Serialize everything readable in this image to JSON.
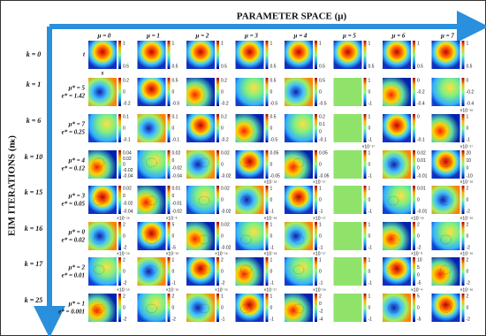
{
  "header": {
    "title": "PARAMETER SPACE (μ)",
    "y_title": "EIM ITERATIONS (nₖ)"
  },
  "columns": [
    "μ = 0",
    "μ = 1",
    "μ = 2",
    "μ = 3",
    "μ = 4",
    "μ = 5",
    "μ = 6",
    "μ = 7"
  ],
  "axis_labels": {
    "t": "t",
    "s": "s"
  },
  "rows": [
    {
      "label": "k = 0",
      "cells": [
        {
          "ticks": [
            "1",
            "0.5"
          ]
        },
        {
          "ticks": [
            "1",
            "0.5"
          ]
        },
        {
          "ticks": [
            "1",
            "0.5"
          ]
        },
        {
          "ticks": [
            "1",
            "0.5"
          ]
        },
        {
          "ticks": [
            "1",
            "0.5"
          ]
        },
        {
          "ticks": [
            "1",
            "0.5"
          ]
        },
        {
          "ticks": [
            "1",
            "0.5"
          ]
        },
        {
          "ticks": [
            "1",
            "0.5"
          ]
        }
      ]
    },
    {
      "label": "k = 1",
      "mu_star": "μ* = 5",
      "e_star": "e* = 1.42",
      "cells": [
        {
          "ticks": [
            "0.2",
            "0",
            "-0.2"
          ]
        },
        {
          "ticks": [
            "0.5",
            "0",
            "-0.5"
          ]
        },
        {
          "ticks": [
            "0.2",
            "0",
            "-0.2"
          ]
        },
        {
          "ticks": [
            "0.5",
            "0",
            "-0.5"
          ]
        },
        {
          "ticks": [
            "0.5",
            "0",
            "-0.5"
          ]
        },
        {
          "ticks": [
            "1",
            "0",
            "-1"
          ]
        },
        {
          "ticks": [
            "0",
            "-0.2",
            "-0.4"
          ]
        },
        {
          "ticks": [
            "0",
            "-0.2",
            "-0.4"
          ]
        }
      ]
    },
    {
      "label": "k = 6",
      "mu_star": "μ* = 7",
      "e_star": "e* = 0.25",
      "cells": [
        {
          "ticks": [
            "0.1",
            "0",
            "-0.1"
          ]
        },
        {
          "ticks": [
            "0.1",
            "0",
            "-0.1"
          ]
        },
        {
          "ticks": [
            "0.2",
            "0",
            "-0.2"
          ]
        },
        {
          "ticks": [
            "0.5",
            "0",
            "-0.5"
          ]
        },
        {
          "ticks": [
            "0.2",
            "0.1",
            "0",
            "-0.1"
          ]
        },
        {
          "ticks": [
            "1",
            "0",
            "-1"
          ]
        },
        {
          "ticks": [
            "0",
            "-0.1"
          ]
        },
        {
          "ticks": [
            "1",
            "0",
            "-1"
          ],
          "scale": "×10⁻¹⁶"
        }
      ]
    },
    {
      "label": "k = 10",
      "mu_star": "μ* = 4",
      "e_star": "e* = 0.12",
      "cells": [
        {
          "ticks": [
            "0.04",
            "0.02",
            "0",
            "-0.02",
            "-0.04"
          ]
        },
        {
          "ticks": [
            "0.02",
            "0",
            "-0.02",
            "-0.04"
          ]
        },
        {
          "ticks": [
            "0.02",
            "0",
            "-0.02"
          ]
        },
        {
          "ticks": [
            "0.05",
            "0",
            "-0.05"
          ]
        },
        {
          "ticks": [
            "0.05",
            "0",
            "-0.05"
          ]
        },
        {
          "ticks": [
            "1",
            "0",
            "-1"
          ],
          "scale": "×10⁻¹⁷"
        },
        {
          "ticks": [
            "0.02",
            "0.01",
            "0",
            "-0.01"
          ]
        },
        {
          "ticks": [
            "20",
            "10",
            "0",
            "-10"
          ],
          "scale": "×10⁻¹⁷"
        }
      ]
    },
    {
      "label": "k = 15",
      "mu_star": "μ* = 3",
      "e_star": "e* = 0.05",
      "cells": [
        {
          "ticks": [
            "0.02",
            "0",
            "-0.02",
            "-0.04"
          ]
        },
        {
          "ticks": [
            "0.01",
            "0",
            "-0.01",
            "-0.02"
          ]
        },
        {
          "ticks": [
            "0.02",
            "0",
            "-0.02"
          ]
        },
        {
          "ticks": [
            "1",
            "0",
            "-1"
          ],
          "scale": "×10⁻¹⁸"
        },
        {
          "ticks": [
            "1",
            "0",
            "-1"
          ],
          "scale": "×10⁻¹⁷"
        },
        {
          "ticks": [
            "1",
            "0",
            "-1"
          ]
        },
        {
          "ticks": [
            "0.01",
            "0",
            "-0.01"
          ]
        },
        {
          "ticks": [
            "2",
            "0",
            "-2"
          ],
          "scale": "×10⁻¹⁶"
        }
      ]
    },
    {
      "label": "k = 16",
      "mu_star": "μ* = 0",
      "e_star": "e* = 0.02",
      "cells": [
        {
          "ticks": [
            "2",
            "0",
            "-2"
          ],
          "scale": "×10⁻¹⁶"
        },
        {
          "ticks": [
            "5",
            "0",
            "-5"
          ],
          "scale": "×10⁻³"
        },
        {
          "ticks": [
            "0.02",
            "0",
            "-0.02"
          ]
        },
        {
          "ticks": [
            "1",
            "0",
            "-1"
          ],
          "scale": "×10⁻¹⁸"
        },
        {
          "ticks": [
            "1",
            "0",
            "-1"
          ],
          "scale": "×10⁻¹⁷"
        },
        {
          "ticks": [
            "1",
            "0",
            "-1"
          ]
        },
        {
          "ticks": [
            "2",
            "0",
            "-2"
          ],
          "scale": "×10⁻¹⁶"
        },
        {
          "ticks": [
            "2",
            "0",
            "-2"
          ],
          "scale": "×10⁻¹⁶"
        }
      ]
    },
    {
      "label": "k = 17",
      "mu_star": "μ* = 2",
      "e_star": "e* = 0.01",
      "cells": [
        {
          "ticks": [
            "2",
            "0",
            "-2"
          ],
          "scale": "×10⁻¹⁶"
        },
        {
          "ticks": [
            "1",
            "0",
            "-1"
          ],
          "scale": "×10⁻¹⁶"
        },
        {
          "ticks": [
            "2",
            "0",
            "-2"
          ],
          "scale": "×10⁻¹⁶"
        },
        {
          "ticks": [
            "1",
            "0",
            "-1"
          ],
          "scale": "×10⁻¹⁸"
        },
        {
          "ticks": [
            "1",
            "0",
            "-1"
          ],
          "scale": "×10⁻¹⁷"
        },
        {
          "ticks": [
            "1",
            "0",
            "-1"
          ]
        },
        {
          "ticks": [
            "10",
            "5",
            "0",
            "-5"
          ],
          "scale": "×10⁻³"
        },
        {
          "ticks": [
            "2",
            "0",
            "-2"
          ],
          "scale": "×10⁻¹⁶"
        }
      ]
    },
    {
      "label": "k = 25",
      "mu_star": "μ* = 1",
      "e_star": "e* = 0.001",
      "cells": [
        {
          "ticks": [
            "2",
            "0",
            "-2"
          ],
          "scale": "×10⁻¹⁵"
        },
        {
          "ticks": [
            "2",
            "0",
            "-2"
          ],
          "scale": "×10⁻¹⁶"
        },
        {
          "ticks": [
            "1",
            "0",
            "-1"
          ],
          "scale": "×10⁻¹⁵"
        },
        {
          "ticks": [
            "1",
            "0",
            "-1"
          ],
          "scale": "×10⁻¹⁷"
        },
        {
          "ticks": [
            "2",
            "0",
            "-2",
            "-4"
          ],
          "scale": "×10⁻¹⁶"
        },
        {
          "ticks": [
            "1",
            "0",
            "-1"
          ]
        },
        {
          "ticks": [
            "5",
            "0",
            "-5"
          ],
          "scale": "×10⁻⁴"
        },
        {
          "ticks": [
            "2",
            "0",
            "-2"
          ],
          "scale": "×10⁻¹⁶"
        }
      ]
    }
  ]
}
